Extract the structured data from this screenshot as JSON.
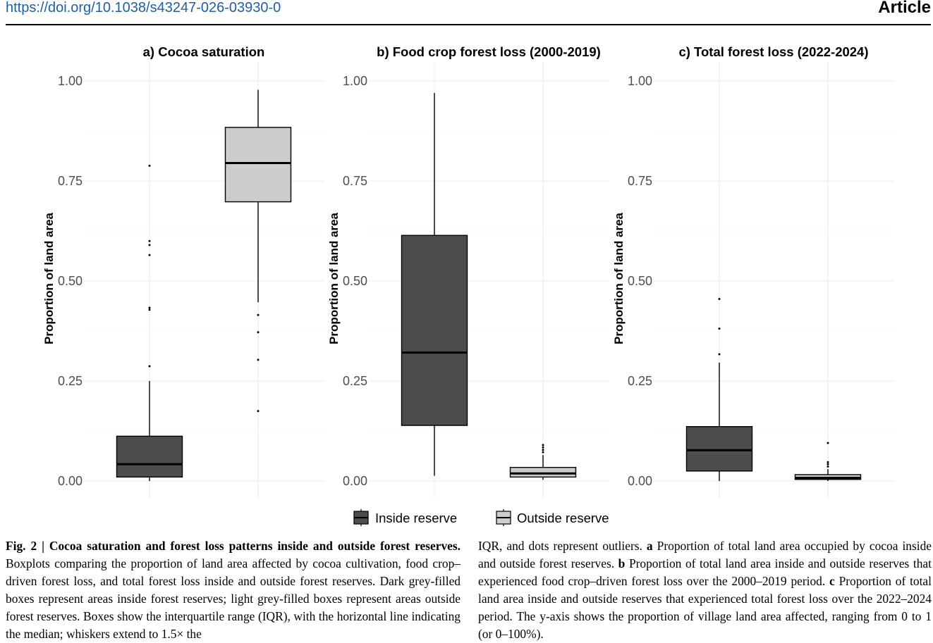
{
  "header": {
    "doi": "https://doi.org/10.1038/s43247-026-03930-0",
    "article_label": "Article"
  },
  "colors": {
    "inside_fill": "#4d4d4d",
    "outside_fill": "#cccccc",
    "grid": "#ebebeb",
    "axis_text": "#4d4d4d",
    "link": "#1f5fa8"
  },
  "legend": {
    "position": "bottom",
    "items": [
      "Inside reserve",
      "Outside reserve"
    ]
  },
  "chart_data": [
    {
      "type": "boxplot",
      "title": "a) Cocoa saturation",
      "ylabel": "Proportion of land area",
      "xlabel": "",
      "ylim": [
        0,
        1
      ],
      "yticks": [
        "0.00",
        "0.25",
        "0.50",
        "0.75",
        "1.00"
      ],
      "grid": true,
      "series": [
        {
          "name": "Inside reserve",
          "whisker_low": 0.0,
          "q1": 0.01,
          "median": 0.042,
          "q3": 0.112,
          "whisker_high": 0.25,
          "outliers": [
            0.287,
            0.428,
            0.433,
            0.565,
            0.59,
            0.6,
            0.788
          ]
        },
        {
          "name": "Outside reserve",
          "whisker_low": 0.447,
          "q1": 0.698,
          "median": 0.795,
          "q3": 0.884,
          "whisker_high": 0.978,
          "outliers": [
            0.175,
            0.303,
            0.372,
            0.415
          ]
        }
      ]
    },
    {
      "type": "boxplot",
      "title": "b) Food crop forest loss (2000-2019)",
      "ylabel": "Proportion of land area",
      "xlabel": "",
      "ylim": [
        0,
        1
      ],
      "yticks": [
        "0.00",
        "0.25",
        "0.50",
        "0.75",
        "1.00"
      ],
      "grid": true,
      "series": [
        {
          "name": "Inside reserve",
          "whisker_low": 0.013,
          "q1": 0.139,
          "median": 0.321,
          "q3": 0.614,
          "whisker_high": 0.97,
          "outliers": []
        },
        {
          "name": "Outside reserve",
          "whisker_low": 0.003,
          "q1": 0.01,
          "median": 0.019,
          "q3": 0.034,
          "whisker_high": 0.065,
          "outliers": [
            0.072,
            0.078,
            0.084,
            0.09
          ]
        }
      ]
    },
    {
      "type": "boxplot",
      "title": "c) Total forest loss (2022-2024)",
      "ylabel": "Proportion of land area",
      "xlabel": "",
      "ylim": [
        0,
        1
      ],
      "yticks": [
        "0.00",
        "0.25",
        "0.50",
        "0.75",
        "1.00"
      ],
      "grid": true,
      "series": [
        {
          "name": "Inside reserve",
          "whisker_low": 0.0,
          "q1": 0.025,
          "median": 0.077,
          "q3": 0.136,
          "whisker_high": 0.296,
          "outliers": [
            0.317,
            0.381,
            0.455
          ]
        },
        {
          "name": "Outside reserve",
          "whisker_low": 0.0,
          "q1": 0.004,
          "median": 0.008,
          "q3": 0.016,
          "whisker_high": 0.03,
          "outliers": [
            0.036,
            0.042,
            0.047,
            0.095
          ]
        }
      ]
    }
  ],
  "caption": {
    "left_bold": "Fig. 2 | Cocoa saturation and forest loss patterns inside and outside forest reserves.",
    "left_text": " Boxplots comparing the proportion of land area affected by cocoa cultivation, food crop–driven forest loss, and total forest loss inside and outside forest reserves. Dark grey-filled boxes represent areas inside forest reserves; light grey-filled boxes represent areas outside forest reserves. Boxes show the interquartile range (IQR), with the horizontal line indicating the median; whiskers extend to 1.5× the",
    "right_1": "IQR, and dots represent outliers. ",
    "right_a": "a",
    "right_2": " Proportion of total land area occupied by cocoa inside and outside forest reserves. ",
    "right_b": "b",
    "right_3": " Proportion of total land area inside and outside reserves that experienced food crop–driven forest loss over the 2000–2019 period. ",
    "right_c": "c",
    "right_4": " Proportion of total land area inside and outside reserves that experienced total forest loss over the 2022–2024 period. The y-axis shows the proportion of village land area affected, ranging from 0 to 1 (or 0–100%)."
  }
}
